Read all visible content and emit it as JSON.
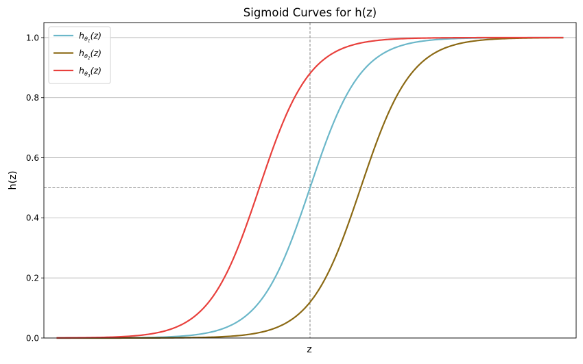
{
  "chart_data": {
    "type": "line",
    "title": "Sigmoid Curves for h(z)",
    "xlabel": "z",
    "ylabel": "h(z)",
    "xlim": [
      -10.5,
      10.5
    ],
    "ylim": [
      0,
      1.05
    ],
    "x_range": [
      -10,
      10
    ],
    "x_ticks": [],
    "y_ticks": [
      "0.0",
      "0.2",
      "0.4",
      "0.6",
      "0.8",
      "1.0"
    ],
    "grid": "horizontal",
    "legend_position": "upper-left",
    "reference_lines": {
      "vertical_x": 0,
      "horizontal_y": 0.5,
      "color": "#808080",
      "style": "dashed"
    },
    "series": [
      {
        "name_base": "h",
        "name_sub": "θ",
        "name_subsub": "1",
        "name_tail": "(z)",
        "color": "#6bb7c9",
        "function": "sigmoid",
        "x_shift": 0,
        "scale": 1
      },
      {
        "name_base": "h",
        "name_sub": "θ",
        "name_subsub": "2",
        "name_tail": "(z)",
        "color": "#8b6914",
        "function": "sigmoid",
        "x_shift": 2,
        "scale": 1
      },
      {
        "name_base": "h",
        "name_sub": "θ",
        "name_subsub": "3",
        "name_tail": "(z)",
        "color": "#e8403c",
        "function": "sigmoid",
        "x_shift": -2,
        "scale": 1
      }
    ]
  }
}
